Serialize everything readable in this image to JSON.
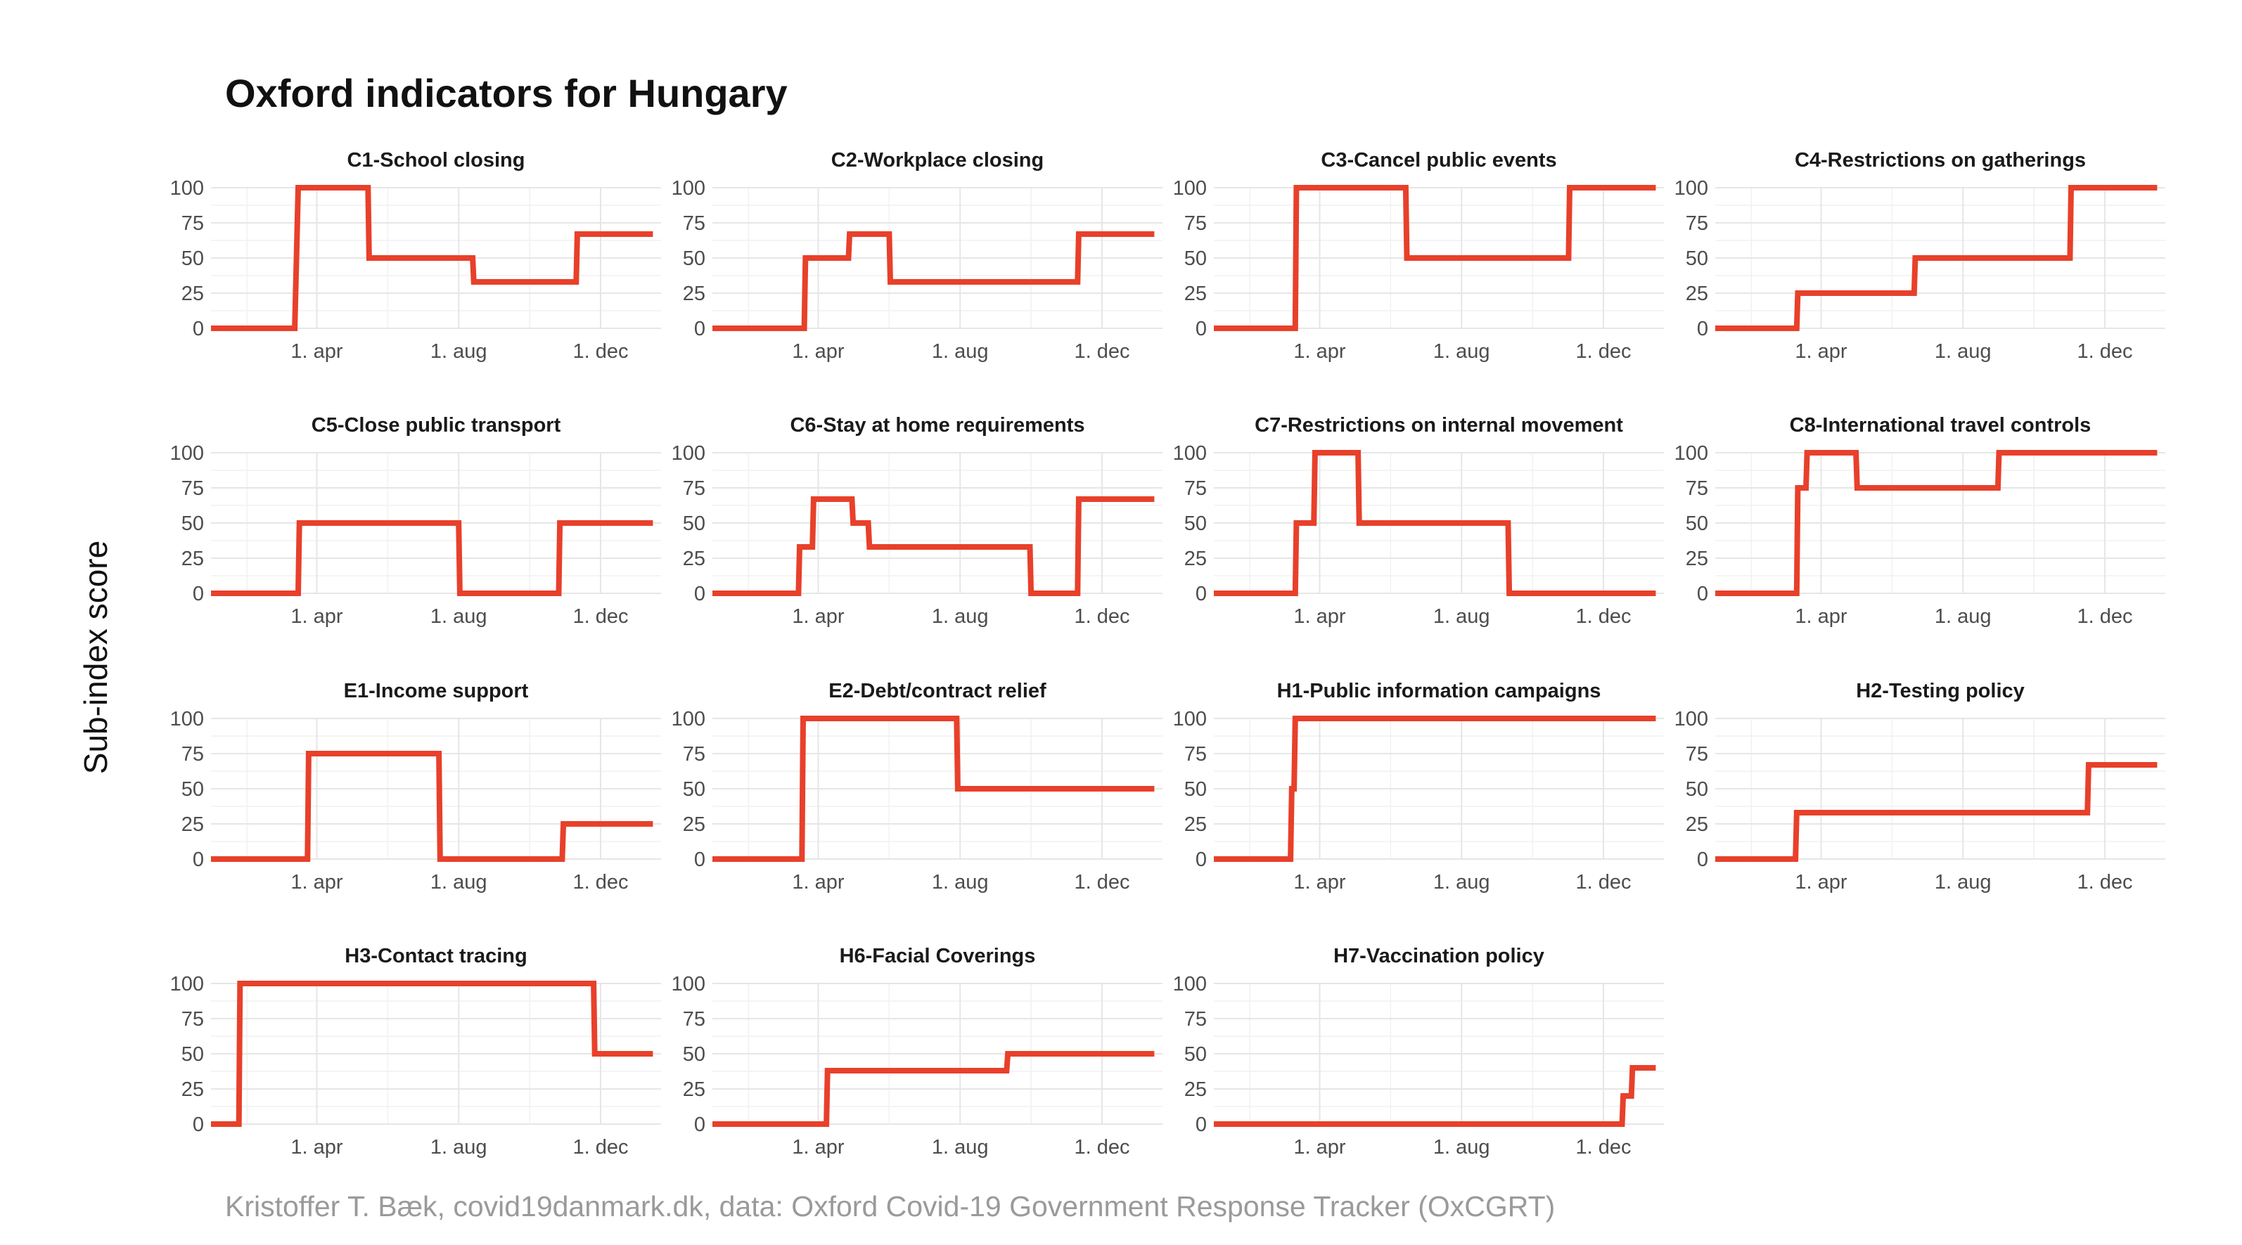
{
  "title": "Oxford indicators for Hungary",
  "ylabel": "Sub-index score",
  "caption": "Kristoffer T. Bæk, covid19danmark.dk, data: Oxford Covid-19 Government Response Tracker (OxCGRT)",
  "colors": {
    "series": "#e8402a",
    "grid": "#e6e6e6",
    "text": "#4d4d4d"
  },
  "chart_data": [
    {
      "type": "line",
      "title": "C1-School closing",
      "ylim": [
        0,
        100
      ],
      "yticks": [
        0,
        25,
        50,
        75,
        100
      ],
      "xticks": [
        "1. apr",
        "1. aug",
        "1. dec"
      ],
      "x": [
        "2020-01-01",
        "2020-03-13",
        "2020-03-15",
        "2020-03-16",
        "2020-05-15",
        "2020-05-16",
        "2020-08-13",
        "2020-08-14",
        "2020-11-10",
        "2020-11-11",
        "2021-01-15"
      ],
      "y": [
        0,
        0,
        67,
        100,
        100,
        50,
        50,
        33,
        33,
        67,
        67
      ]
    },
    {
      "type": "line",
      "title": "C2-Workplace closing",
      "ylim": [
        0,
        100
      ],
      "yticks": [
        0,
        25,
        50,
        75,
        100
      ],
      "xticks": [
        "1. apr",
        "1. aug",
        "1. dec"
      ],
      "x": [
        "2020-01-01",
        "2020-03-20",
        "2020-03-21",
        "2020-04-27",
        "2020-04-28",
        "2020-06-01",
        "2020-06-02",
        "2020-11-10",
        "2020-11-11",
        "2021-01-15"
      ],
      "y": [
        0,
        0,
        50,
        50,
        67,
        67,
        33,
        33,
        67,
        67
      ]
    },
    {
      "type": "line",
      "title": "C3-Cancel public events",
      "ylim": [
        0,
        100
      ],
      "yticks": [
        0,
        25,
        50,
        75,
        100
      ],
      "xticks": [
        "1. apr",
        "1. aug",
        "1. dec"
      ],
      "x": [
        "2020-01-01",
        "2020-03-11",
        "2020-03-12",
        "2020-06-14",
        "2020-06-15",
        "2020-11-01",
        "2020-11-02",
        "2021-01-15"
      ],
      "y": [
        0,
        0,
        100,
        100,
        50,
        50,
        100,
        100
      ]
    },
    {
      "type": "line",
      "title": "C4-Restrictions on gatherings",
      "ylim": [
        0,
        100
      ],
      "yticks": [
        0,
        25,
        50,
        75,
        100
      ],
      "xticks": [
        "1. apr",
        "1. aug",
        "1. dec"
      ],
      "x": [
        "2020-01-01",
        "2020-03-11",
        "2020-03-12",
        "2020-06-20",
        "2020-06-21",
        "2020-11-01",
        "2020-11-02",
        "2021-01-15"
      ],
      "y": [
        0,
        0,
        25,
        25,
        50,
        50,
        100,
        100
      ]
    },
    {
      "type": "line",
      "title": "C5-Close public transport",
      "ylim": [
        0,
        100
      ],
      "yticks": [
        0,
        25,
        50,
        75,
        100
      ],
      "xticks": [
        "1. apr",
        "1. aug",
        "1. dec"
      ],
      "x": [
        "2020-01-01",
        "2020-03-16",
        "2020-03-17",
        "2020-08-01",
        "2020-08-02",
        "2020-10-26",
        "2020-10-27",
        "2021-01-15"
      ],
      "y": [
        0,
        0,
        50,
        50,
        0,
        0,
        50,
        50
      ]
    },
    {
      "type": "line",
      "title": "C6-Stay at home requirements",
      "ylim": [
        0,
        100
      ],
      "yticks": [
        0,
        25,
        50,
        75,
        100
      ],
      "xticks": [
        "1. apr",
        "1. aug",
        "1. dec"
      ],
      "x": [
        "2020-01-01",
        "2020-03-15",
        "2020-03-16",
        "2020-03-27",
        "2020-03-28",
        "2020-04-30",
        "2020-05-01",
        "2020-05-14",
        "2020-05-15",
        "2020-09-30",
        "2020-10-01",
        "2020-11-10",
        "2020-11-11",
        "2021-01-15"
      ],
      "y": [
        0,
        0,
        33,
        33,
        67,
        67,
        50,
        50,
        33,
        33,
        0,
        0,
        67,
        67
      ]
    },
    {
      "type": "line",
      "title": "C7-Restrictions on internal movement",
      "ylim": [
        0,
        100
      ],
      "yticks": [
        0,
        25,
        50,
        75,
        100
      ],
      "xticks": [
        "1. apr",
        "1. aug",
        "1. dec"
      ],
      "x": [
        "2020-01-01",
        "2020-03-11",
        "2020-03-12",
        "2020-03-27",
        "2020-03-28",
        "2020-05-04",
        "2020-05-05",
        "2020-09-10",
        "2020-09-11",
        "2021-01-15"
      ],
      "y": [
        0,
        0,
        50,
        50,
        100,
        100,
        50,
        50,
        0,
        0
      ]
    },
    {
      "type": "line",
      "title": "C8-International travel controls",
      "ylim": [
        0,
        100
      ],
      "yticks": [
        0,
        25,
        50,
        75,
        100
      ],
      "xticks": [
        "1. apr",
        "1. aug",
        "1. dec"
      ],
      "x": [
        "2020-01-01",
        "2020-03-11",
        "2020-03-12",
        "2020-03-19",
        "2020-03-20",
        "2020-05-01",
        "2020-05-02",
        "2020-08-31",
        "2020-09-01",
        "2021-01-15"
      ],
      "y": [
        0,
        0,
        75,
        75,
        100,
        100,
        75,
        75,
        100,
        100
      ]
    },
    {
      "type": "line",
      "title": "E1-Income support",
      "ylim": [
        0,
        100
      ],
      "yticks": [
        0,
        25,
        50,
        75,
        100
      ],
      "xticks": [
        "1. apr",
        "1. aug",
        "1. dec"
      ],
      "x": [
        "2020-01-01",
        "2020-03-24",
        "2020-03-25",
        "2020-07-15",
        "2020-07-16",
        "2020-10-29",
        "2020-10-30",
        "2021-01-15"
      ],
      "y": [
        0,
        0,
        75,
        75,
        0,
        0,
        25,
        25
      ]
    },
    {
      "type": "line",
      "title": "E2-Debt/contract relief",
      "ylim": [
        0,
        100
      ],
      "yticks": [
        0,
        25,
        50,
        75,
        100
      ],
      "xticks": [
        "1. apr",
        "1. aug",
        "1. dec"
      ],
      "x": [
        "2020-01-01",
        "2020-03-18",
        "2020-03-19",
        "2020-07-29",
        "2020-07-30",
        "2021-01-15"
      ],
      "y": [
        0,
        0,
        100,
        100,
        50,
        50
      ]
    },
    {
      "type": "line",
      "title": "H1-Public information campaigns",
      "ylim": [
        0,
        100
      ],
      "yticks": [
        0,
        25,
        50,
        75,
        100
      ],
      "xticks": [
        "1. apr",
        "1. aug",
        "1. dec"
      ],
      "x": [
        "2020-01-01",
        "2020-03-07",
        "2020-03-08",
        "2020-03-10",
        "2020-03-11",
        "2021-01-15"
      ],
      "y": [
        0,
        0,
        50,
        50,
        100,
        100
      ]
    },
    {
      "type": "line",
      "title": "H2-Testing policy",
      "ylim": [
        0,
        100
      ],
      "yticks": [
        0,
        25,
        50,
        75,
        100
      ],
      "xticks": [
        "1. apr",
        "1. aug",
        "1. dec"
      ],
      "x": [
        "2020-01-01",
        "2020-03-10",
        "2020-03-11",
        "2020-11-16",
        "2020-11-17",
        "2021-01-15"
      ],
      "y": [
        0,
        0,
        33,
        33,
        67,
        67
      ]
    },
    {
      "type": "line",
      "title": "H3-Contact tracing",
      "ylim": [
        0,
        100
      ],
      "yticks": [
        0,
        25,
        50,
        75,
        100
      ],
      "xticks": [
        "1. apr",
        "1. aug",
        "1. dec"
      ],
      "x": [
        "2020-01-01",
        "2020-01-25",
        "2020-01-26",
        "2020-11-25",
        "2020-11-26",
        "2021-01-15"
      ],
      "y": [
        0,
        0,
        100,
        100,
        50,
        50
      ]
    },
    {
      "type": "line",
      "title": "H6-Facial Coverings",
      "ylim": [
        0,
        100
      ],
      "yticks": [
        0,
        25,
        50,
        75,
        100
      ],
      "xticks": [
        "1. apr",
        "1. aug",
        "1. dec"
      ],
      "x": [
        "2020-01-01",
        "2020-04-08",
        "2020-04-09",
        "2020-09-10",
        "2020-09-11",
        "2021-01-15"
      ],
      "y": [
        0,
        0,
        38,
        38,
        50,
        50
      ]
    },
    {
      "type": "line",
      "title": "H7-Vaccination policy",
      "ylim": [
        0,
        100
      ],
      "yticks": [
        0,
        25,
        50,
        75,
        100
      ],
      "xticks": [
        "1. apr",
        "1. aug",
        "1. dec"
      ],
      "x": [
        "2020-01-01",
        "2020-12-17",
        "2020-12-18",
        "2020-12-25",
        "2020-12-26",
        "2021-01-15"
      ],
      "y": [
        0,
        0,
        20,
        20,
        40,
        40
      ]
    }
  ]
}
